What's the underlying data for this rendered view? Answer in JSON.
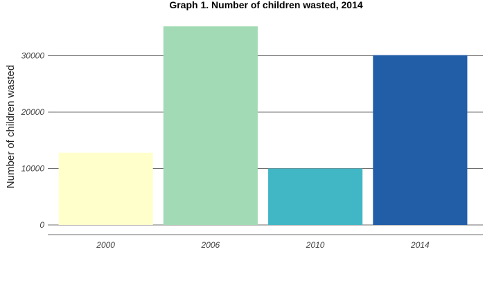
{
  "chart_data": {
    "type": "bar",
    "title": "Graph 1. Number of children wasted, 2014",
    "xlabel": "",
    "ylabel": "Number of children wasted",
    "categories": [
      "2000",
      "2006",
      "2010",
      "2014"
    ],
    "values": [
      12800,
      35200,
      10000,
      30100
    ],
    "colors": [
      "#ffffcc",
      "#a1dab4",
      "#41b6c4",
      "#225ea8"
    ],
    "ylim": [
      0,
      36000
    ],
    "yticks": [
      0,
      10000,
      20000,
      30000
    ],
    "ytick_labels": [
      "0",
      "10000",
      "20000",
      "30000"
    ],
    "grid": true,
    "legend": "none"
  }
}
